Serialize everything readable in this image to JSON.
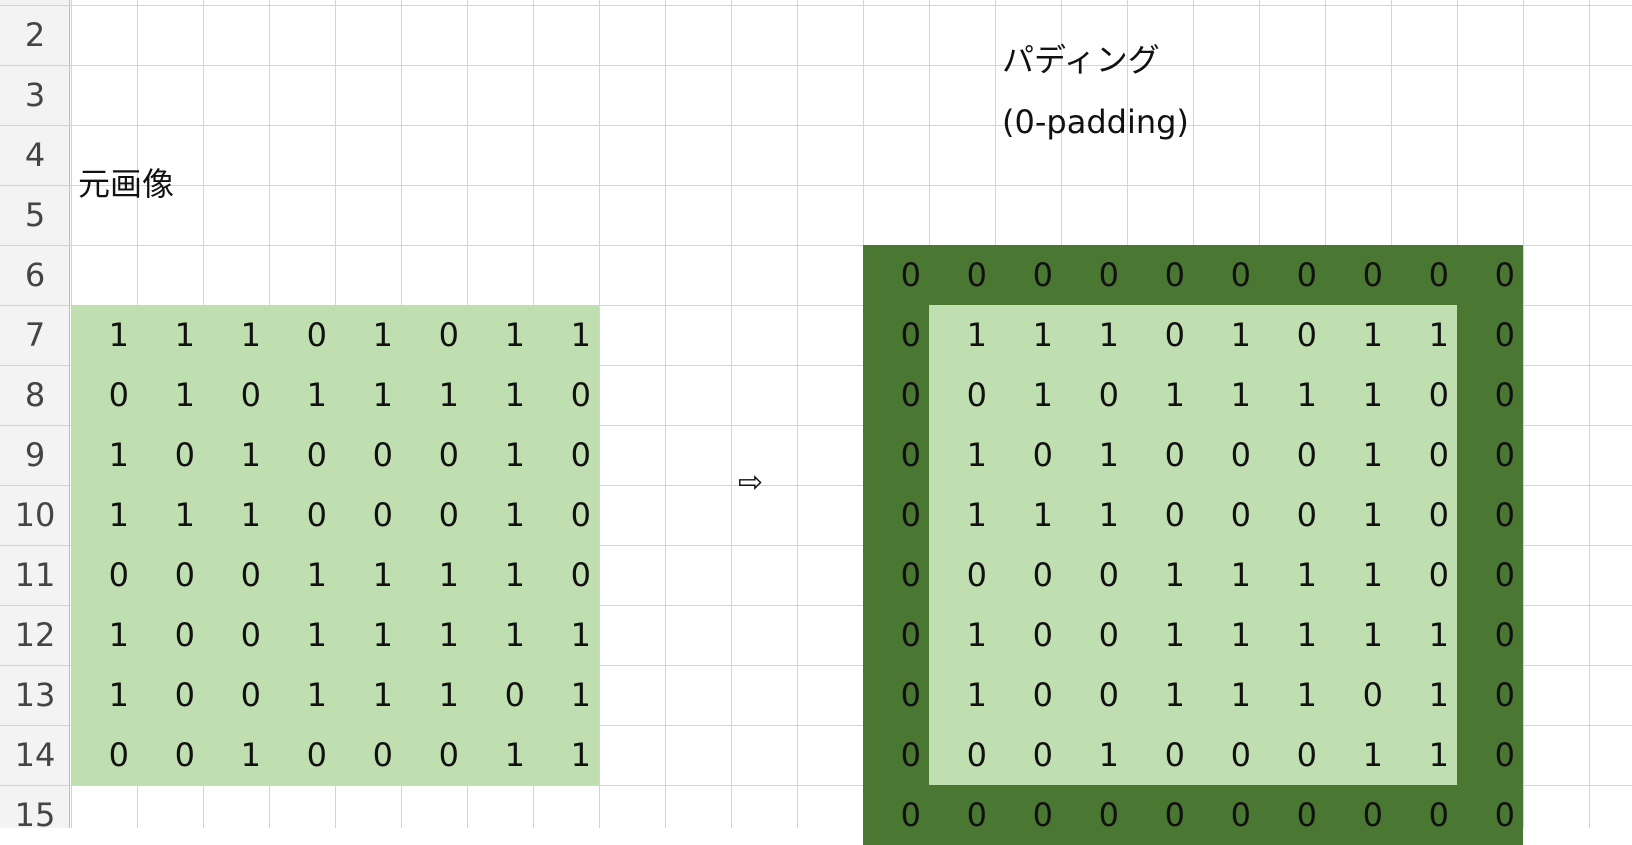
{
  "row_numbers": [
    "2",
    "3",
    "4",
    "5",
    "6",
    "7",
    "8",
    "9",
    "10",
    "11",
    "12",
    "13",
    "14",
    "15"
  ],
  "labels": {
    "original_image": "元画像",
    "padding_title": "パディング",
    "padding_subtitle": "(0-padding)",
    "arrow": "⇨"
  },
  "colors": {
    "light_green": "#c0dfb0",
    "dark_green": "#4a7832"
  },
  "original_grid": [
    [
      "1",
      "1",
      "1",
      "0",
      "1",
      "0",
      "1",
      "1"
    ],
    [
      "0",
      "1",
      "0",
      "1",
      "1",
      "1",
      "1",
      "0"
    ],
    [
      "1",
      "0",
      "1",
      "0",
      "0",
      "0",
      "1",
      "0"
    ],
    [
      "1",
      "1",
      "1",
      "0",
      "0",
      "0",
      "1",
      "0"
    ],
    [
      "0",
      "0",
      "0",
      "1",
      "1",
      "1",
      "1",
      "0"
    ],
    [
      "1",
      "0",
      "0",
      "1",
      "1",
      "1",
      "1",
      "1"
    ],
    [
      "1",
      "0",
      "0",
      "1",
      "1",
      "1",
      "0",
      "1"
    ],
    [
      "0",
      "0",
      "1",
      "0",
      "0",
      "0",
      "1",
      "1"
    ]
  ],
  "padded_grid": [
    [
      "0",
      "0",
      "0",
      "0",
      "0",
      "0",
      "0",
      "0",
      "0",
      "0"
    ],
    [
      "0",
      "1",
      "1",
      "1",
      "0",
      "1",
      "0",
      "1",
      "1",
      "0"
    ],
    [
      "0",
      "0",
      "1",
      "0",
      "1",
      "1",
      "1",
      "1",
      "0",
      "0"
    ],
    [
      "0",
      "1",
      "0",
      "1",
      "0",
      "0",
      "0",
      "1",
      "0",
      "0"
    ],
    [
      "0",
      "1",
      "1",
      "1",
      "0",
      "0",
      "0",
      "1",
      "0",
      "0"
    ],
    [
      "0",
      "0",
      "0",
      "0",
      "1",
      "1",
      "1",
      "1",
      "0",
      "0"
    ],
    [
      "0",
      "1",
      "0",
      "0",
      "1",
      "1",
      "1",
      "1",
      "1",
      "0"
    ],
    [
      "0",
      "1",
      "0",
      "0",
      "1",
      "1",
      "1",
      "0",
      "1",
      "0"
    ],
    [
      "0",
      "0",
      "0",
      "1",
      "0",
      "0",
      "0",
      "1",
      "1",
      "0"
    ],
    [
      "0",
      "0",
      "0",
      "0",
      "0",
      "0",
      "0",
      "0",
      "0",
      "0"
    ]
  ]
}
